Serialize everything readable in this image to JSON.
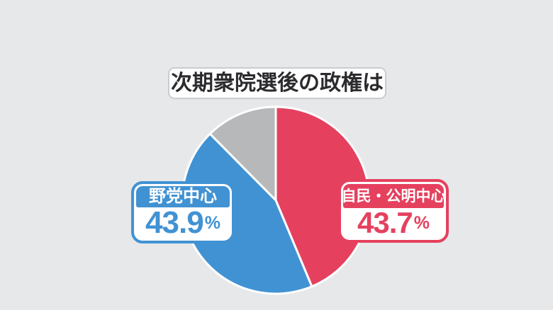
{
  "colors": {
    "background": "#e6e8ea",
    "ruling_red": "#e5415f",
    "opposition_blue": "#4192d3",
    "undecided_gray": "#b6b8b9",
    "slice_separator": "#ffffff",
    "title_border": "#c9cdd0",
    "title_text": "#2b2b2e"
  },
  "title": {
    "text": "次期衆院選後の政権は"
  },
  "chart_data": {
    "type": "pie",
    "title": "次期衆院選後の政権は",
    "direction": "clockwise",
    "start_angle_deg": 0,
    "legend_position": "callout-labels",
    "slices": [
      {
        "label": "自民・公明中心",
        "value": 43.7,
        "display": "43.7",
        "unit": "%",
        "color": "#e5415f"
      },
      {
        "label": "野党中心",
        "value": 43.9,
        "display": "43.9",
        "unit": "%",
        "color": "#4192d3"
      },
      {
        "label": "",
        "value": 12.4,
        "display": "",
        "unit": "",
        "color": "#b6b8b9"
      }
    ]
  }
}
